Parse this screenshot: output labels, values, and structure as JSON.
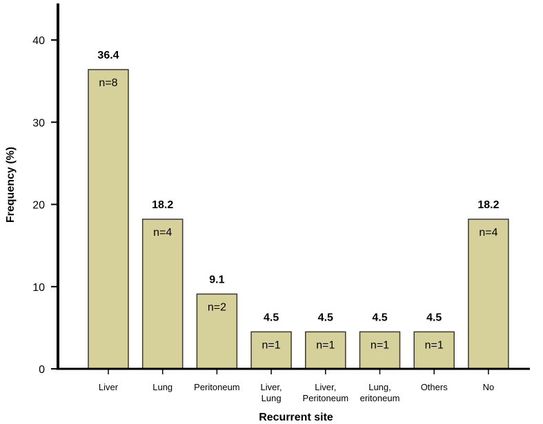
{
  "chart_data": {
    "type": "bar",
    "xlabel": "Recurrent site",
    "ylabel": "Frequency (%)",
    "ylim": [
      0,
      45
    ],
    "yticks": [
      0,
      10,
      20,
      30,
      40
    ],
    "grid": false,
    "bar_color": "#d6d09b",
    "bar_edge_color": "#3a3a2a",
    "categories": [
      [
        "Liver"
      ],
      [
        "Lung"
      ],
      [
        "Peritoneum"
      ],
      [
        "Liver,",
        "Lung"
      ],
      [
        "Liver,",
        "Peritoneum"
      ],
      [
        "Lung,",
        "eritoneum"
      ],
      [
        "Others"
      ],
      [
        "No"
      ]
    ],
    "values": [
      36.4,
      18.2,
      9.1,
      4.5,
      4.5,
      4.5,
      4.5,
      18.2
    ],
    "value_labels": [
      "36.4",
      "18.2",
      "9.1",
      "4.5",
      "4.5",
      "4.5",
      "4.5",
      "18.2"
    ],
    "counts": [
      "n=8",
      "n=4",
      "n=2",
      "n=1",
      "n=1",
      "n=1",
      "n=1",
      "n=4"
    ]
  }
}
